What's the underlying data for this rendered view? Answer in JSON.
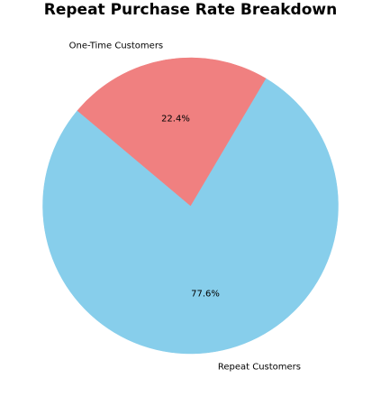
{
  "chart_data": {
    "type": "pie",
    "title": "Repeat Purchase Rate Breakdown",
    "slices": [
      {
        "label": "Repeat Customers",
        "value": 77.6,
        "pct_label": "77.6%",
        "color": "#87ceeb"
      },
      {
        "label": "One-Time Customers",
        "value": 22.4,
        "pct_label": "22.4%",
        "color": "#f08080"
      }
    ],
    "start_angle_deg": 140,
    "legend": "none"
  }
}
